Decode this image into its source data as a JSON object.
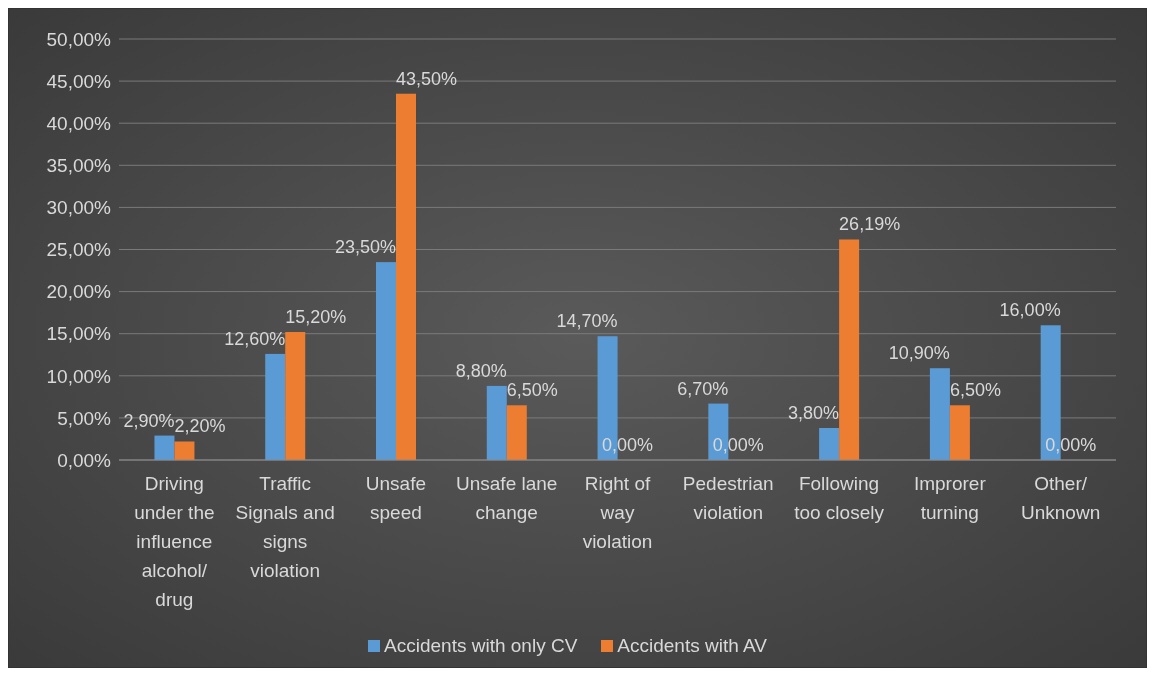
{
  "chart_data": {
    "type": "bar",
    "categories": [
      "Driving under the influence alcohol/ drug",
      "Traffic Signals and signs violation",
      "Unsafe speed",
      "Unsafe lane change",
      "Right of way violation",
      "Pedestrian violation",
      "Following too closely",
      "Improrer turning",
      "Other/ Unknown"
    ],
    "series": [
      {
        "name": "Accidents with only CV",
        "color": "#5b9bd5",
        "values": [
          2.9,
          12.6,
          23.5,
          8.8,
          14.7,
          6.7,
          3.8,
          10.9,
          16.0
        ],
        "value_labels": [
          "2,90%",
          "12,60%",
          "23,50%",
          "8,80%",
          "14,70%",
          "6,70%",
          "3,80%",
          "10,90%",
          "16,00%"
        ]
      },
      {
        "name": "Accidents with AV",
        "color": "#ed7d31",
        "values": [
          2.2,
          15.2,
          43.5,
          6.5,
          0,
          0,
          26.19,
          6.5,
          0
        ],
        "value_labels": [
          "2,20%",
          "15,20%",
          "43,50%",
          "6,50%",
          "0,00%",
          "0,00%",
          "26,19%",
          "6,50%",
          "0,00%"
        ]
      }
    ],
    "ylim": [
      0,
      50
    ],
    "yticks": [
      {
        "value": 0,
        "label": "0,00%"
      },
      {
        "value": 5,
        "label": "5,00%"
      },
      {
        "value": 10,
        "label": "10,00%"
      },
      {
        "value": 15,
        "label": "15,00%"
      },
      {
        "value": 20,
        "label": "20,00%"
      },
      {
        "value": 25,
        "label": "25,00%"
      },
      {
        "value": 30,
        "label": "30,00%"
      },
      {
        "value": 35,
        "label": "35,00%"
      },
      {
        "value": 40,
        "label": "40,00%"
      },
      {
        "value": 45,
        "label": "45,00%"
      },
      {
        "value": 50,
        "label": "50,00%"
      }
    ],
    "grid": "y",
    "legend": "bottom"
  }
}
